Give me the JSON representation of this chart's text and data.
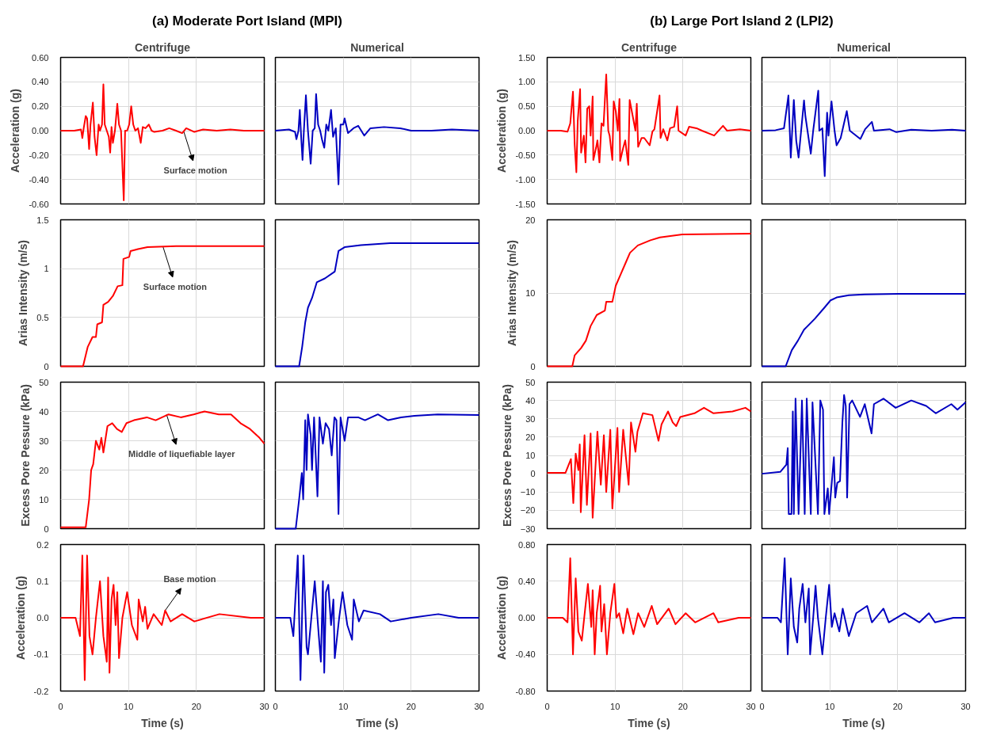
{
  "chart_data": [
    {
      "type": "line",
      "title": "Centrifuge",
      "ylabel": "Acceleration (g)",
      "annotations": [
        "(a) Moderate Port Island (MPI)",
        {
          "text": "Surface motion",
          "x": 18.1,
          "y": 0.0
        }
      ],
      "color": "#ff0000",
      "grid": true,
      "tick_labels": "y",
      "xlim": [
        0,
        30
      ],
      "xticks": [
        0,
        10,
        20,
        30
      ],
      "ylim": [
        -0.6,
        0.6
      ],
      "yticks": [
        {
          "value": -0.6,
          "label": "-0.60"
        },
        {
          "value": -0.4,
          "label": "-0.40"
        },
        {
          "value": -0.2,
          "label": "-0.20"
        },
        {
          "value": 0,
          "label": "0.00"
        },
        {
          "value": 0.2,
          "label": "0.20"
        },
        {
          "value": 0.4,
          "label": "0.40"
        },
        {
          "value": 0.6,
          "label": "0.60"
        }
      ],
      "x": [
        0,
        2,
        3,
        3.2,
        3.4,
        3.7,
        3.9,
        4.2,
        4.4,
        4.75,
        5.0,
        5.3,
        5.6,
        5.8,
        6.1,
        6.3,
        6.5,
        6.8,
        7.1,
        7.3,
        7.5,
        7.7,
        8.0,
        8.35,
        8.6,
        8.9,
        9.3,
        9.5,
        9.8,
        10.1,
        10.4,
        10.7,
        11.0,
        11.4,
        11.8,
        12.1,
        12.5,
        13.0,
        13.4,
        13.8,
        15,
        16,
        17,
        17.9,
        18.5,
        19.7,
        21,
        23,
        25,
        27,
        30
      ],
      "values": [
        0,
        0,
        0.01,
        -0.06,
        0.02,
        0.12,
        0.1,
        -0.15,
        0.05,
        0.23,
        -0.05,
        -0.2,
        0.05,
        0.0,
        0.05,
        0.38,
        0.05,
        0.0,
        -0.05,
        -0.18,
        0.03,
        -0.1,
        0.0,
        0.22,
        0.05,
        0.0,
        -0.57,
        0.0,
        0.0,
        0.05,
        0.2,
        0.05,
        0.0,
        0.02,
        -0.1,
        0.03,
        0.02,
        0.05,
        0.0,
        -0.01,
        0.0,
        0.02,
        0.0,
        -0.02,
        0.02,
        -0.01,
        0.01,
        0.0,
        0.01,
        0.0,
        0.0
      ]
    },
    {
      "type": "line",
      "title": "Numerical",
      "color": "#0000c0",
      "grid": true,
      "tick_labels": false,
      "xlim": [
        0,
        30
      ],
      "xticks": [
        0,
        10,
        20,
        30
      ],
      "ylim": [
        -0.6,
        0.6
      ],
      "yticks": [
        -0.6,
        -0.4,
        -0.2,
        0,
        0.2,
        0.4,
        0.6
      ],
      "x": [
        0,
        2,
        2.9,
        3.1,
        3.4,
        3.6,
        3.8,
        4.0,
        4.2,
        4.5,
        4.8,
        5.2,
        5.5,
        5.8,
        6.0,
        6.3,
        6.6,
        6.9,
        7.2,
        7.5,
        7.8,
        8.2,
        8.5,
        8.9,
        9.3,
        9.6,
        10.0,
        10.2,
        10.7,
        11.5,
        12.2,
        13.1,
        14,
        16,
        18.4,
        20,
        23,
        26,
        30
      ],
      "values": [
        0,
        0.01,
        -0.01,
        -0.07,
        0.0,
        0.17,
        -0.05,
        -0.24,
        0.0,
        0.29,
        0.0,
        -0.27,
        0.0,
        0.02,
        0.3,
        0.05,
        0.0,
        -0.08,
        -0.14,
        0.05,
        0.0,
        0.17,
        -0.05,
        0.02,
        -0.44,
        0.05,
        0.05,
        0.1,
        -0.02,
        0.02,
        0.04,
        -0.04,
        0.02,
        0.03,
        0.02,
        0.0,
        0.0,
        0.01,
        0.0
      ]
    },
    {
      "type": "line",
      "title": "Centrifuge",
      "ylabel": "Acceleration (g)",
      "annotations": [
        "(b) Large Port Island 2 (LPI2)"
      ],
      "color": "#ff0000",
      "grid": true,
      "tick_labels": "y",
      "xlim": [
        0,
        30
      ],
      "xticks": [
        0,
        10,
        20,
        30
      ],
      "ylim": [
        -1.5,
        1.5
      ],
      "yticks": [
        {
          "value": -1.5,
          "label": "-1.50"
        },
        {
          "value": -1.0,
          "label": "-1.00"
        },
        {
          "value": -0.5,
          "label": "-0.50"
        },
        {
          "value": 0,
          "label": "0.00"
        },
        {
          "value": 0.5,
          "label": "0.50"
        },
        {
          "value": 1.0,
          "label": "1.00"
        },
        {
          "value": 1.5,
          "label": "1.50"
        }
      ],
      "x": [
        0,
        2,
        3.0,
        3.4,
        3.8,
        4.05,
        4.3,
        4.5,
        4.85,
        5.0,
        5.4,
        5.65,
        5.9,
        6.2,
        6.4,
        6.7,
        6.8,
        7.2,
        7.4,
        7.7,
        8.0,
        8.3,
        8.7,
        9.0,
        9.2,
        9.6,
        9.8,
        10.1,
        10.4,
        10.65,
        10.75,
        11.2,
        11.5,
        11.95,
        12.15,
        12.6,
        13.0,
        13.2,
        13.4,
        13.9,
        14.3,
        15.1,
        15.5,
        15.8,
        16.55,
        16.7,
        17.1,
        17.7,
        18.1,
        18.7,
        19.15,
        19.35,
        20.4,
        20.9,
        22,
        22.8,
        24.6,
        25.9,
        26.5,
        28.4,
        30
      ],
      "values": [
        0,
        0,
        -0.02,
        0.15,
        0.8,
        -0.28,
        -0.85,
        0.2,
        0.85,
        -0.45,
        -0.1,
        -0.65,
        0.45,
        0.5,
        -0.1,
        0.7,
        -0.6,
        -0.35,
        -0.2,
        -0.65,
        0.15,
        0.1,
        1.15,
        0.0,
        -0.1,
        -0.6,
        0.6,
        0.4,
        0.0,
        0.65,
        -0.62,
        -0.35,
        -0.2,
        -0.7,
        0.63,
        0.3,
        0.0,
        0.55,
        -0.33,
        -0.15,
        -0.15,
        -0.3,
        -0.02,
        0.03,
        0.72,
        -0.15,
        0.03,
        -0.2,
        0.05,
        0.08,
        0.5,
        0.0,
        -0.1,
        0.08,
        0.05,
        0.0,
        -0.1,
        0.1,
        0.0,
        0.03,
        0.0
      ]
    },
    {
      "type": "line",
      "title": "Numerical",
      "color": "#0000c0",
      "grid": true,
      "tick_labels": false,
      "xlim": [
        0,
        30
      ],
      "xticks": [
        0,
        10,
        20,
        30
      ],
      "ylim": [
        -1.5,
        1.5
      ],
      "yticks": [
        -1.5,
        -1.0,
        -0.5,
        0,
        0.5,
        1.0,
        1.5
      ],
      "x": [
        0,
        2,
        3.25,
        3.9,
        4.25,
        4.7,
        5.05,
        5.4,
        6.2,
        6.4,
        7.2,
        7.55,
        8.3,
        8.45,
        8.9,
        9.25,
        9.6,
        9.8,
        10.25,
        10.7,
        11.0,
        11.6,
        12.5,
        12.95,
        14.5,
        15.2,
        16.2,
        16.5,
        18.8,
        19.8,
        22,
        25,
        28,
        30
      ],
      "values": [
        0,
        0.01,
        0.05,
        0.72,
        -0.55,
        0.63,
        -0.2,
        -0.55,
        0.62,
        0.3,
        -0.47,
        0.0,
        0.82,
        0.0,
        0.05,
        -0.93,
        0.37,
        -0.1,
        0.6,
        0.0,
        -0.3,
        -0.15,
        0.4,
        0.0,
        -0.17,
        0.03,
        0.18,
        0.0,
        0.03,
        -0.03,
        0.02,
        0.0,
        0.02,
        0.0
      ]
    },
    {
      "type": "line",
      "ylabel": "Arias Intensity (m/s)",
      "annotations": [
        {
          "text": "Surface motion",
          "x": 15.1,
          "y": 1.22
        }
      ],
      "color": "#ff0000",
      "grid": true,
      "tick_labels": "y",
      "xlim": [
        0,
        30
      ],
      "xticks": [
        0,
        10,
        20,
        30
      ],
      "ylim": [
        0,
        1.5
      ],
      "yticks": [
        0,
        0.5,
        1,
        1.5
      ],
      "x": [
        0,
        3.3,
        4.0,
        4.7,
        5.2,
        5.4,
        6.1,
        6.3,
        7.0,
        7.7,
        8.4,
        9.1,
        9.25,
        10.1,
        10.3,
        11.4,
        12.8,
        17,
        30
      ],
      "values": [
        0,
        0,
        0.2,
        0.3,
        0.3,
        0.43,
        0.45,
        0.63,
        0.66,
        0.72,
        0.82,
        0.83,
        1.1,
        1.12,
        1.18,
        1.2,
        1.22,
        1.23,
        1.23
      ]
    },
    {
      "type": "line",
      "color": "#0000c0",
      "grid": true,
      "tick_labels": false,
      "xlim": [
        0,
        30
      ],
      "xticks": [
        0,
        10,
        20,
        30
      ],
      "ylim": [
        0,
        1.5
      ],
      "yticks": [
        0,
        0.5,
        1,
        1.5
      ],
      "x": [
        0,
        3.5,
        3.95,
        4.4,
        4.8,
        5.4,
        6.1,
        7.3,
        8.75,
        9.3,
        10.2,
        12.6,
        16.9,
        30
      ],
      "values": [
        0,
        0,
        0.2,
        0.45,
        0.6,
        0.7,
        0.86,
        0.9,
        0.97,
        1.18,
        1.22,
        1.24,
        1.26,
        1.26
      ]
    },
    {
      "type": "line",
      "ylabel": "Arias Intensity (m/s)",
      "color": "#ff0000",
      "grid": true,
      "tick_labels": "y",
      "xlim": [
        0,
        30
      ],
      "xticks": [
        0,
        10,
        20,
        30
      ],
      "ylim": [
        0,
        20
      ],
      "yticks": [
        0,
        10,
        20
      ],
      "x": [
        0,
        3.7,
        4.05,
        5.0,
        5.7,
        6.4,
        7.3,
        8.5,
        8.7,
        9.6,
        10.1,
        10.8,
        11.5,
        12.2,
        13.35,
        15.2,
        16.6,
        19.9,
        30
      ],
      "values": [
        0,
        0,
        1.5,
        2.5,
        3.5,
        5.5,
        7.0,
        7.6,
        8.8,
        8.8,
        11,
        12.5,
        14,
        15.5,
        16.5,
        17.2,
        17.6,
        18.0,
        18.1
      ]
    },
    {
      "type": "line",
      "color": "#0000c0",
      "grid": true,
      "tick_labels": false,
      "xlim": [
        0,
        30
      ],
      "xticks": [
        0,
        10,
        20,
        30
      ],
      "ylim": [
        0,
        20
      ],
      "yticks": [
        0,
        10,
        20
      ],
      "x": [
        0,
        3.5,
        4.4,
        5.3,
        6.2,
        7.8,
        9.2,
        10.1,
        11,
        12.8,
        15.1,
        20.1,
        30
      ],
      "values": [
        0,
        0,
        2.2,
        3.5,
        5.0,
        6.5,
        8.0,
        9.0,
        9.4,
        9.7,
        9.8,
        9.9,
        9.9
      ]
    },
    {
      "type": "line",
      "ylabel": "Excess Pore Pessure (kPa)",
      "annotations": [
        {
          "text": "Middle of liquefiable layer",
          "x": 15.6,
          "y": 39
        }
      ],
      "color": "#ff0000",
      "grid": true,
      "tick_labels": "y",
      "xlim": [
        0,
        30
      ],
      "xticks": [
        0,
        10,
        20,
        30
      ],
      "ylim": [
        0,
        50
      ],
      "yticks": [
        0,
        10,
        20,
        30,
        40,
        50
      ],
      "x": [
        0,
        3.7,
        4.2,
        4.5,
        4.8,
        5.2,
        5.7,
        6.0,
        6.3,
        6.9,
        7.6,
        8.3,
        9.0,
        9.7,
        10.8,
        12.7,
        14,
        15.9,
        17.7,
        19.6,
        21.2,
        23.3,
        25.1,
        26.5,
        27.9,
        29.3,
        30
      ],
      "values": [
        0.5,
        0.5,
        10,
        20,
        22,
        30,
        27,
        31,
        26,
        35,
        36,
        34,
        33,
        36,
        37,
        38,
        37,
        39,
        38,
        39,
        40,
        39,
        39,
        36,
        34,
        31,
        29
      ]
    },
    {
      "type": "line",
      "color": "#0000c0",
      "grid": true,
      "tick_labels": false,
      "xlim": [
        0,
        30
      ],
      "xticks": [
        0,
        10,
        20,
        30
      ],
      "ylim": [
        0,
        50
      ],
      "yticks": [
        0,
        10,
        20,
        30,
        40,
        50
      ],
      "x": [
        0,
        3.0,
        3.5,
        3.9,
        4.1,
        4.4,
        4.6,
        4.8,
        5.2,
        5.4,
        5.7,
        6.2,
        6.5,
        7.0,
        7.4,
        7.9,
        8.3,
        8.7,
        9.0,
        9.3,
        9.6,
        10.2,
        10.7,
        12.2,
        13.2,
        15.1,
        16.6,
        18.5,
        20.5,
        23.9,
        30
      ],
      "values": [
        0,
        0,
        10,
        19,
        10,
        37,
        20,
        39,
        32,
        20,
        38,
        11,
        38,
        29,
        36,
        34,
        25,
        38,
        37,
        5,
        38,
        30,
        38,
        38,
        37,
        39,
        37,
        38,
        38.5,
        39,
        38.8
      ]
    },
    {
      "type": "line",
      "ylabel": "Excess Pore Pessure (kPa)",
      "color": "#ff0000",
      "grid": true,
      "tick_labels": "y",
      "xlim": [
        0,
        30
      ],
      "xticks": [
        0,
        10,
        20,
        30
      ],
      "ylim": [
        -30,
        50
      ],
      "yticks": [
        -30,
        -20,
        -10,
        0,
        10,
        20,
        30,
        40,
        50
      ],
      "x": [
        0,
        2.7,
        3.5,
        3.85,
        4.2,
        4.6,
        4.8,
        4.95,
        5.5,
        5.85,
        6.4,
        6.7,
        7.4,
        7.9,
        8.35,
        8.7,
        9.3,
        9.6,
        10.35,
        10.6,
        11.2,
        12.0,
        12.35,
        13.0,
        13.3,
        14.1,
        15.5,
        16.4,
        16.85,
        17.8,
        18.5,
        19.0,
        19.6,
        21.7,
        23.1,
        24.5,
        27.3,
        29.2,
        30
      ],
      "values": [
        0.5,
        0.5,
        8,
        -16,
        11,
        2,
        16,
        -21,
        21,
        -17,
        22,
        -24,
        23,
        -6,
        21,
        -10,
        24,
        -19,
        25,
        -10,
        24,
        -6,
        28,
        12,
        23,
        33,
        32,
        18,
        27,
        34,
        28,
        26,
        31,
        33,
        36,
        33,
        34,
        36,
        34
      ]
    },
    {
      "type": "line",
      "color": "#0000c0",
      "grid": true,
      "tick_labels": false,
      "xlim": [
        0,
        30
      ],
      "xticks": [
        0,
        10,
        20,
        30
      ],
      "ylim": [
        -30,
        50
      ],
      "yticks": [
        -30,
        -20,
        -10,
        0,
        10,
        20,
        30,
        40,
        50
      ],
      "x": [
        0,
        2.7,
        3.6,
        3.8,
        3.95,
        4.35,
        4.55,
        4.7,
        4.95,
        5.4,
        5.9,
        6.3,
        6.6,
        7.2,
        7.45,
        8.25,
        8.6,
        9.0,
        9.2,
        9.7,
        9.9,
        10.6,
        10.8,
        11.1,
        11.5,
        11.85,
        12.1,
        12.35,
        12.55,
        12.9,
        13.3,
        14.45,
        15.15,
        16.15,
        16.5,
        17.9,
        19.7,
        22,
        24.2,
        25.6,
        27.9,
        28.8,
        30
      ],
      "values": [
        0,
        1,
        5,
        14,
        -22,
        -22,
        34,
        -22,
        41,
        -22,
        40,
        -22,
        41,
        -22,
        39,
        -22,
        40,
        35,
        -22,
        -8,
        -22,
        9,
        -13,
        -5,
        -4,
        28,
        43,
        37,
        -13,
        38,
        40,
        31,
        38,
        22,
        38,
        41,
        36,
        40,
        37,
        33,
        38,
        35,
        39
      ]
    },
    {
      "type": "line",
      "xlabel": "Time (s)",
      "ylabel": "Acceleration (g)",
      "annotations": [
        {
          "text": "Base motion",
          "x": 15.4,
          "y": 0.02
        }
      ],
      "color": "#ff0000",
      "grid": true,
      "xlim": [
        0,
        30
      ],
      "xticks": [
        0,
        10,
        20,
        30
      ],
      "ylim": [
        -0.2,
        0.2
      ],
      "yticks": [
        {
          "value": -0.2,
          "label": "-0.2"
        },
        {
          "value": -0.1,
          "label": "-0.1"
        },
        {
          "value": 0,
          "label": "0.0"
        },
        {
          "value": 0.1,
          "label": "0.1"
        },
        {
          "value": 0.2,
          "label": "0.2"
        }
      ],
      "x": [
        0,
        2.2,
        2.85,
        3.2,
        3.55,
        3.9,
        4.25,
        4.7,
        5.2,
        5.8,
        6.3,
        6.8,
        7.0,
        7.2,
        7.5,
        7.8,
        8.1,
        8.35,
        8.6,
        9.1,
        9.8,
        10.5,
        11.3,
        11.5,
        12.1,
        12.45,
        12.8,
        13.7,
        14.9,
        15.4,
        16.2,
        17.9,
        19.7,
        23.4,
        28,
        30
      ],
      "values": [
        0,
        0,
        -0.05,
        0.17,
        -0.17,
        0.17,
        -0.05,
        -0.1,
        0.0,
        0.1,
        -0.05,
        -0.12,
        0.11,
        -0.15,
        0.05,
        0.09,
        -0.02,
        0.07,
        -0.11,
        0.0,
        0.07,
        -0.02,
        -0.06,
        0.05,
        -0.01,
        0.03,
        -0.03,
        0.01,
        -0.02,
        0.02,
        -0.01,
        0.01,
        -0.01,
        0.01,
        0.0,
        0
      ]
    },
    {
      "type": "line",
      "xlabel": "Time (s)",
      "color": "#0000c0",
      "grid": true,
      "tick_labels": "x",
      "xlim": [
        0,
        30
      ],
      "xticks": [
        0,
        10,
        20,
        30
      ],
      "ylim": [
        -0.2,
        0.2
      ],
      "yticks": [
        -0.2,
        -0.1,
        0,
        0.1,
        0.2
      ],
      "x": [
        0,
        2.2,
        2.65,
        3.3,
        3.7,
        4.15,
        4.6,
        4.8,
        5.3,
        5.8,
        6.4,
        6.7,
        7.0,
        7.2,
        7.45,
        7.8,
        8.2,
        8.55,
        8.75,
        9.4,
        9.9,
        10.6,
        11.3,
        11.55,
        12.3,
        13,
        15.4,
        17,
        20,
        24,
        27,
        30
      ],
      "values": [
        0,
        0,
        -0.05,
        0.17,
        -0.17,
        0.17,
        -0.08,
        -0.1,
        0.0,
        0.1,
        -0.05,
        -0.12,
        0.1,
        -0.15,
        0.07,
        0.09,
        -0.02,
        0.05,
        -0.11,
        0.0,
        0.07,
        -0.02,
        -0.06,
        0.05,
        -0.01,
        0.02,
        0.01,
        -0.01,
        0.0,
        0.01,
        0.0,
        0
      ]
    },
    {
      "type": "line",
      "xlabel": "Time (s)",
      "ylabel": "Acceleration (g)",
      "color": "#ff0000",
      "grid": true,
      "xlim": [
        0,
        30
      ],
      "xticks": [
        0,
        10,
        20,
        30
      ],
      "ylim": [
        -0.8,
        0.8
      ],
      "yticks": [
        {
          "value": -0.8,
          "label": "-0.80"
        },
        {
          "value": -0.4,
          "label": "-0.40"
        },
        {
          "value": 0,
          "label": "0.00"
        },
        {
          "value": 0.4,
          "label": "0.40"
        },
        {
          "value": 0.8,
          "label": "0.80"
        }
      ],
      "x": [
        0,
        2.3,
        3.0,
        3.4,
        3.8,
        4.2,
        4.6,
        5.1,
        5.6,
        6.0,
        6.5,
        6.7,
        7.0,
        7.3,
        7.8,
        8.0,
        8.4,
        8.8,
        9.3,
        9.9,
        10.2,
        10.6,
        11.2,
        11.8,
        12.7,
        13.4,
        14.3,
        15.4,
        16.2,
        17.9,
        18.9,
        20.4,
        21.8,
        24.5,
        25.2,
        28.2,
        30
      ],
      "values": [
        0,
        0,
        -0.05,
        0.65,
        -0.4,
        0.43,
        -0.15,
        -0.25,
        0.1,
        0.37,
        -0.1,
        0.3,
        -0.4,
        0.05,
        0.35,
        -0.15,
        0.15,
        -0.4,
        0.05,
        0.37,
        0.0,
        0.05,
        -0.17,
        0.1,
        -0.18,
        0.05,
        -0.1,
        0.13,
        -0.07,
        0.1,
        -0.07,
        0.05,
        -0.05,
        0.05,
        -0.05,
        0.0,
        0
      ]
    },
    {
      "type": "line",
      "xlabel": "Time (s)",
      "color": "#0000c0",
      "grid": true,
      "tick_labels": "x",
      "xlim": [
        0,
        30
      ],
      "xticks": [
        0,
        10,
        20,
        30
      ],
      "ylim": [
        -0.8,
        0.8
      ],
      "yticks": [
        -0.8,
        -0.4,
        0,
        0.4,
        0.8
      ],
      "x": [
        0,
        2.3,
        2.8,
        3.35,
        3.8,
        4.25,
        4.7,
        5.2,
        5.5,
        6.0,
        6.4,
        6.9,
        7.1,
        7.55,
        7.9,
        8.25,
        8.9,
        9.4,
        9.9,
        10.3,
        10.7,
        11.4,
        11.9,
        12.8,
        13.9,
        15.5,
        16.2,
        17.9,
        18.7,
        21,
        23.2,
        24.6,
        25.5,
        28.2,
        30
      ],
      "values": [
        0,
        0,
        -0.05,
        0.65,
        -0.4,
        0.43,
        -0.1,
        -0.27,
        0.1,
        0.37,
        -0.05,
        0.32,
        -0.4,
        0.0,
        0.35,
        0.0,
        -0.4,
        0.0,
        0.36,
        -0.1,
        0.05,
        -0.15,
        0.1,
        -0.2,
        0.05,
        0.13,
        -0.05,
        0.1,
        -0.05,
        0.05,
        -0.05,
        0.05,
        -0.05,
        0.0,
        0
      ]
    }
  ]
}
